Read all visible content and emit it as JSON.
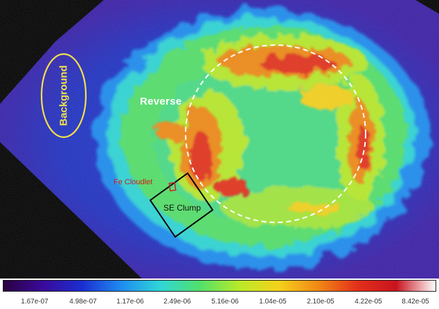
{
  "image": {
    "description_free": true,
    "annotations": {
      "background_label": "Background",
      "reverse_label": "Reverse",
      "fe_label": "Fe Cloudlet",
      "se_label": "SE Clump"
    },
    "colors": {
      "background_ellipse": "#f5e04a",
      "reverse_circle": "#ffffff",
      "fe_box": "#d11a1a",
      "se_box": "#000000"
    }
  },
  "colorbar": {
    "ticks": [
      "1.67e-07",
      "4.98e-07",
      "1.17e-06",
      "2.49e-06",
      "5.16e-06",
      "1.04e-05",
      "2.10e-05",
      "4.22e-05",
      "8.42e-05"
    ],
    "colormap": [
      "#2a0040",
      "#3a0a9a",
      "#1a2ed0",
      "#1e8cf0",
      "#2fd6d6",
      "#52e06a",
      "#b8ea2a",
      "#f5d21a",
      "#f08a16",
      "#e3301a",
      "#c8141e",
      "#ffffff"
    ]
  }
}
